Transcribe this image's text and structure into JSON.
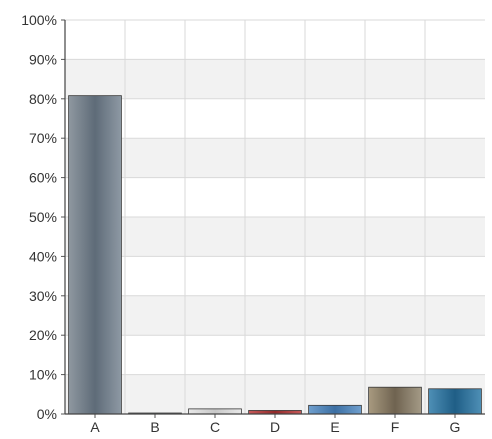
{
  "chart_data": {
    "type": "bar",
    "title": "",
    "xlabel": "",
    "ylabel": "",
    "categories": [
      "A",
      "B",
      "C",
      "D",
      "E",
      "F",
      "G"
    ],
    "values": [
      0.808,
      0.002,
      0.013,
      0.009,
      0.022,
      0.068,
      0.064
    ],
    "ylim": [
      0,
      1
    ],
    "ytick_labels": [
      "0%",
      "10%",
      "20%",
      "30%",
      "40%",
      "50%",
      "60%",
      "70%",
      "80%",
      "90%",
      "100%"
    ],
    "grid": "on",
    "legend": "none",
    "band_colors": [
      "#f2f2f2",
      "#ffffff"
    ],
    "bar_colors": [
      [
        "#8f98a0",
        "#5e6b78",
        "#8e99a4"
      ],
      [
        "#9ba5ae",
        "#6e7b88",
        "#9ba5ae"
      ],
      [
        "#e8e8e8",
        "#c8c8c8",
        "#e8e8e8"
      ],
      [
        "#c85a5a",
        "#922a2a",
        "#c85a5a"
      ],
      [
        "#6f9fce",
        "#3c6fa3",
        "#6f9fce"
      ],
      [
        "#a89a80",
        "#6f6350",
        "#a49a86"
      ],
      [
        "#4e8fb6",
        "#1f5e86",
        "#4e8fb6"
      ]
    ]
  }
}
